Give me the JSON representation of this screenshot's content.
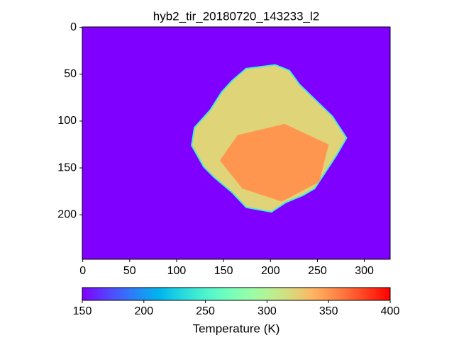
{
  "chart_data": {
    "type": "image",
    "title": "hyb2_tir_20180720_143233_l2",
    "xlim": [
      -0.5,
      327.5
    ],
    "ylim": [
      247.5,
      -0.5
    ],
    "xticks": [
      0,
      50,
      100,
      150,
      200,
      250,
      300
    ],
    "yticks": [
      0,
      50,
      100,
      150,
      200
    ],
    "colormap": "rainbow",
    "background_value": 150,
    "regions": [
      {
        "value": 322,
        "polygon": [
          [
            174,
            44
          ],
          [
            205,
            40
          ],
          [
            220,
            46
          ],
          [
            231,
            61
          ],
          [
            266,
            95
          ],
          [
            281,
            118
          ],
          [
            270,
            137
          ],
          [
            247,
            172
          ],
          [
            235,
            179
          ],
          [
            216,
            187
          ],
          [
            201,
            197
          ],
          [
            174,
            192
          ],
          [
            159,
            176
          ],
          [
            140,
            160
          ],
          [
            129,
            149
          ],
          [
            116,
            126
          ],
          [
            119,
            107
          ],
          [
            136,
            88
          ],
          [
            148,
            69
          ],
          [
            159,
            57
          ]
        ]
      },
      {
        "value": 350,
        "polygon": [
          [
            165,
            115
          ],
          [
            215,
            103
          ],
          [
            262,
            125
          ],
          [
            252,
            165
          ],
          [
            212,
            186
          ],
          [
            170,
            172
          ],
          [
            146,
            142
          ]
        ]
      }
    ],
    "colorbar": {
      "label": "Temperature (K)",
      "clim": [
        150,
        400
      ],
      "ticks": [
        150,
        200,
        250,
        300,
        350,
        400
      ]
    }
  }
}
